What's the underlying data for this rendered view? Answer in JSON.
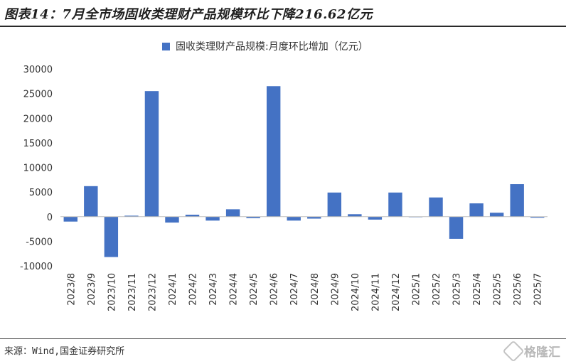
{
  "header": {
    "title": "图表14：7月全市场固收类理财产品规模环比下降216.62亿元"
  },
  "footer": {
    "source": "来源：Wind,国金证券研究所",
    "watermark": "格隆汇"
  },
  "colors": {
    "bar": "#4472c4"
  },
  "chart_data": {
    "type": "bar",
    "title": "",
    "xlabel": "",
    "ylabel": "",
    "categories": [
      "2023/8",
      "2023/9",
      "2023/10",
      "2023/11",
      "2023/12",
      "2024/1",
      "2024/2",
      "2024/3",
      "2024/4",
      "2024/5",
      "2024/6",
      "2024/7",
      "2024/8",
      "2024/9",
      "2024/10",
      "2024/11",
      "2024/12",
      "2025/1",
      "2025/2",
      "2025/3",
      "2025/4",
      "2025/5",
      "2025/6",
      "2025/7"
    ],
    "series": [
      {
        "name": "固收类理财产品规模:月度环比增加（亿元）",
        "values": [
          -1000,
          6200,
          -8200,
          200,
          25500,
          -1200,
          400,
          -800,
          1500,
          -300,
          26500,
          -800,
          -400,
          4900,
          500,
          -600,
          4900,
          0,
          3900,
          -4500,
          2700,
          800,
          6600,
          -216.62
        ]
      }
    ],
    "ylim": [
      -10000,
      30000
    ],
    "yticks": [
      30000,
      25000,
      20000,
      15000,
      10000,
      5000,
      0,
      -5000,
      -10000
    ],
    "ytick_labels": [
      "30000",
      "25000",
      "20000",
      "15000",
      "10000",
      "5000",
      "0",
      "-5000",
      "-10000"
    ],
    "legend_position": "top",
    "grid": false
  }
}
